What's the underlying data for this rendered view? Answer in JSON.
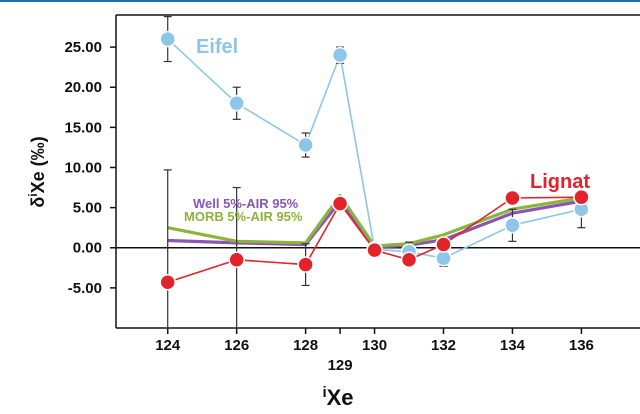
{
  "chart_data": {
    "type": "line",
    "title": "",
    "xlabel": "iXe",
    "xlabel_super": "i",
    "xlabel_main": "Xe",
    "ylabel": "δiXe (‰)",
    "ylabel_parts": {
      "delta": "δ",
      "super": "i",
      "main": "Xe (‰)"
    },
    "xlim": [
      122.5,
      137.7
    ],
    "ylim": [
      -10,
      29
    ],
    "x_ticks": [
      124,
      126,
      128,
      129,
      130,
      132,
      134,
      136
    ],
    "x_tick_labels": [
      "124",
      "126",
      "128",
      "129",
      "130",
      "132",
      "134",
      "136"
    ],
    "y_ticks": [
      25,
      20,
      15,
      10,
      5,
      0,
      -5
    ],
    "y_tick_labels": [
      "25.00",
      "20.00",
      "15.00",
      "10.00",
      "5.00",
      "0.00",
      "-5.00"
    ],
    "zero_line": true,
    "grid": false,
    "colors": {
      "eifel": "#8ec6ea",
      "lignat": "#e3232a",
      "well": "#8a55b5",
      "morb": "#8cb43c",
      "axis": "#111111",
      "error_bar": "#333333",
      "top_rule": "#1f6db5"
    },
    "series": [
      {
        "name": "Eifel",
        "color": "#8ec6ea",
        "marker": "circle",
        "x": [
          124,
          126,
          128,
          129,
          130,
          131,
          132,
          134,
          136
        ],
        "y": [
          26.0,
          18.0,
          12.8,
          24.0,
          -0.2,
          -0.5,
          -1.3,
          2.8,
          4.8
        ],
        "err": [
          2.8,
          2.0,
          1.5,
          1.0,
          0.5,
          1.2,
          1.0,
          2.0,
          2.3
        ]
      },
      {
        "name": "Lignat",
        "color": "#e3232a",
        "marker": "circle",
        "x": [
          124,
          126,
          128,
          129,
          130,
          131,
          132,
          134,
          136
        ],
        "y": [
          -4.3,
          -1.5,
          -2.1,
          5.5,
          -0.3,
          -1.5,
          0.4,
          6.2,
          6.3
        ],
        "err": [
          14.0,
          9.0,
          2.6,
          0.7,
          0.4,
          0.6,
          0.5,
          0.4,
          0.4
        ]
      },
      {
        "name": "Well 5%-AIR 95%",
        "color": "#8a55b5",
        "marker": "none",
        "x": [
          124,
          126,
          128,
          129,
          130,
          131,
          132,
          134,
          136
        ],
        "y": [
          0.9,
          0.6,
          0.4,
          5.8,
          0.1,
          0.3,
          1.0,
          4.3,
          5.8
        ]
      },
      {
        "name": "MORB 5%-AIR 95%",
        "color": "#8cb43c",
        "marker": "none",
        "x": [
          124,
          126,
          128,
          129,
          130,
          131,
          132,
          134,
          136
        ],
        "y": [
          2.5,
          0.8,
          0.6,
          6.5,
          0.2,
          0.5,
          1.6,
          4.8,
          6.2
        ]
      }
    ],
    "annotations": [
      {
        "text": "Eifel",
        "color": "#8ec6ea"
      },
      {
        "text": "Lignat",
        "color": "#e3232a"
      },
      {
        "text": "Well 5%-AIR 95%",
        "color": "#8a55b5"
      },
      {
        "text": "MORB 5%-AIR 95%",
        "color": "#8cb43c"
      }
    ]
  }
}
